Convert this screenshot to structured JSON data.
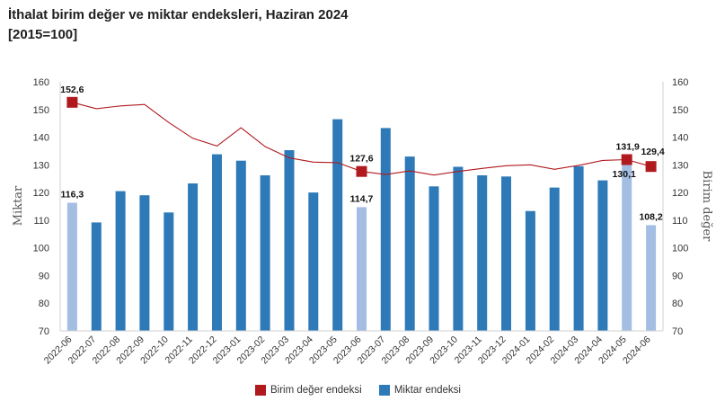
{
  "header": {
    "title_line1": "İthalat birim değer ve miktar endeksleri, Haziran 2024",
    "title_line2": "[2015=100]"
  },
  "chart_data": {
    "type": "bar+line",
    "categories": [
      "2022-06",
      "2022-07",
      "2022-08",
      "2022-09",
      "2022-10",
      "2022-11",
      "2022-12",
      "2023-01",
      "2023-02",
      "2023-03",
      "2023-04",
      "2023-05",
      "2023-06",
      "2023-07",
      "2023-08",
      "2023-09",
      "2023-10",
      "2023-11",
      "2023-12",
      "2024-01",
      "2024-02",
      "2024-03",
      "2024-04",
      "2024-05",
      "2024-06"
    ],
    "series": [
      {
        "name": "Miktar endeksi",
        "kind": "bar",
        "axis": "left",
        "color": "#2e7ab8",
        "highlight_color": "#a3bde3",
        "highlight_categories": [
          "2022-06",
          "2023-06",
          "2024-05",
          "2024-06"
        ],
        "values": [
          116.3,
          109.2,
          120.5,
          119.0,
          112.8,
          123.3,
          133.8,
          131.5,
          126.2,
          135.3,
          120.0,
          146.5,
          114.7,
          143.3,
          133.0,
          122.2,
          129.3,
          126.2,
          125.8,
          113.3,
          121.8,
          129.5,
          124.4,
          130.1,
          108.2
        ]
      },
      {
        "name": "Birim değer endeksi",
        "kind": "line",
        "axis": "right",
        "color": "#b0191e",
        "marker_categories": [
          "2022-06",
          "2023-06",
          "2024-05",
          "2024-06"
        ],
        "values": [
          152.6,
          150.3,
          151.3,
          151.8,
          145.3,
          139.6,
          136.8,
          143.4,
          136.6,
          132.5,
          131.0,
          130.8,
          127.6,
          126.5,
          127.8,
          126.3,
          127.6,
          128.7,
          129.7,
          130.0,
          128.4,
          129.8,
          131.6,
          131.9,
          129.4
        ]
      }
    ],
    "data_labels": [
      {
        "series": "Miktar endeksi",
        "category": "2022-06",
        "text": "116,3"
      },
      {
        "series": "Miktar endeksi",
        "category": "2023-06",
        "text": "114,7"
      },
      {
        "series": "Miktar endeksi",
        "category": "2024-05",
        "text": "130,1"
      },
      {
        "series": "Miktar endeksi",
        "category": "2024-06",
        "text": "108,2"
      },
      {
        "series": "Birim değer endeksi",
        "category": "2022-06",
        "text": "152,6"
      },
      {
        "series": "Birim değer endeksi",
        "category": "2023-06",
        "text": "127,6"
      },
      {
        "series": "Birim değer endeksi",
        "category": "2024-05",
        "text": "131,9"
      },
      {
        "series": "Birim değer endeksi",
        "category": "2024-06",
        "text": "129,4"
      }
    ],
    "ylim_left": [
      70,
      160
    ],
    "ylim_right": [
      70,
      160
    ],
    "yticks": [
      70,
      80,
      90,
      100,
      110,
      120,
      130,
      140,
      150,
      160
    ],
    "ylabel_left": "Miktar",
    "ylabel_right": "Birim değer",
    "grid": false,
    "legend": {
      "placement": "bottom-center",
      "entries": [
        {
          "label": "Birim değer endeksi",
          "color": "#b0191e"
        },
        {
          "label": "Miktar endeksi",
          "color": "#2e7ab8"
        }
      ]
    }
  }
}
